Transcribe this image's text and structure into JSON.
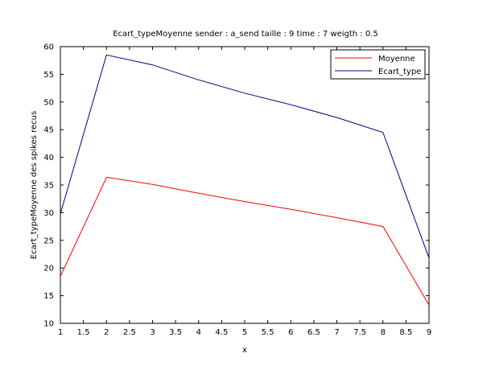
{
  "chart_data": {
    "type": "line",
    "title": "Ecart_typeMoyenne sender : a_send taille : 9 time : 7 weigth : 0.5",
    "xlabel": "x",
    "ylabel": "Ecart_typeMoyenne des spikes recus",
    "xlim": [
      1,
      9
    ],
    "ylim": [
      10,
      60
    ],
    "xticks": [
      "1",
      "1.5",
      "2",
      "2.5",
      "3",
      "3.5",
      "4",
      "4.5",
      "5",
      "5.5",
      "6",
      "6.5",
      "7",
      "7.5",
      "8",
      "8.5",
      "9"
    ],
    "yticks": [
      "10",
      "15",
      "20",
      "25",
      "30",
      "35",
      "40",
      "45",
      "50",
      "55",
      "60"
    ],
    "grid": false,
    "legend_position": "top-right",
    "x": [
      1,
      2,
      3,
      4,
      5,
      6,
      7,
      8,
      9
    ],
    "series": [
      {
        "name": "Moyenne",
        "color": "#ff0000",
        "values": [
          18.5,
          36.4,
          35.1,
          33.5,
          32.0,
          30.6,
          29.1,
          27.5,
          13.3
        ]
      },
      {
        "name": "Ecart_type",
        "color": "#000080",
        "values": [
          29.8,
          58.5,
          56.7,
          54.0,
          51.6,
          49.5,
          47.2,
          44.5,
          21.8
        ]
      }
    ]
  }
}
